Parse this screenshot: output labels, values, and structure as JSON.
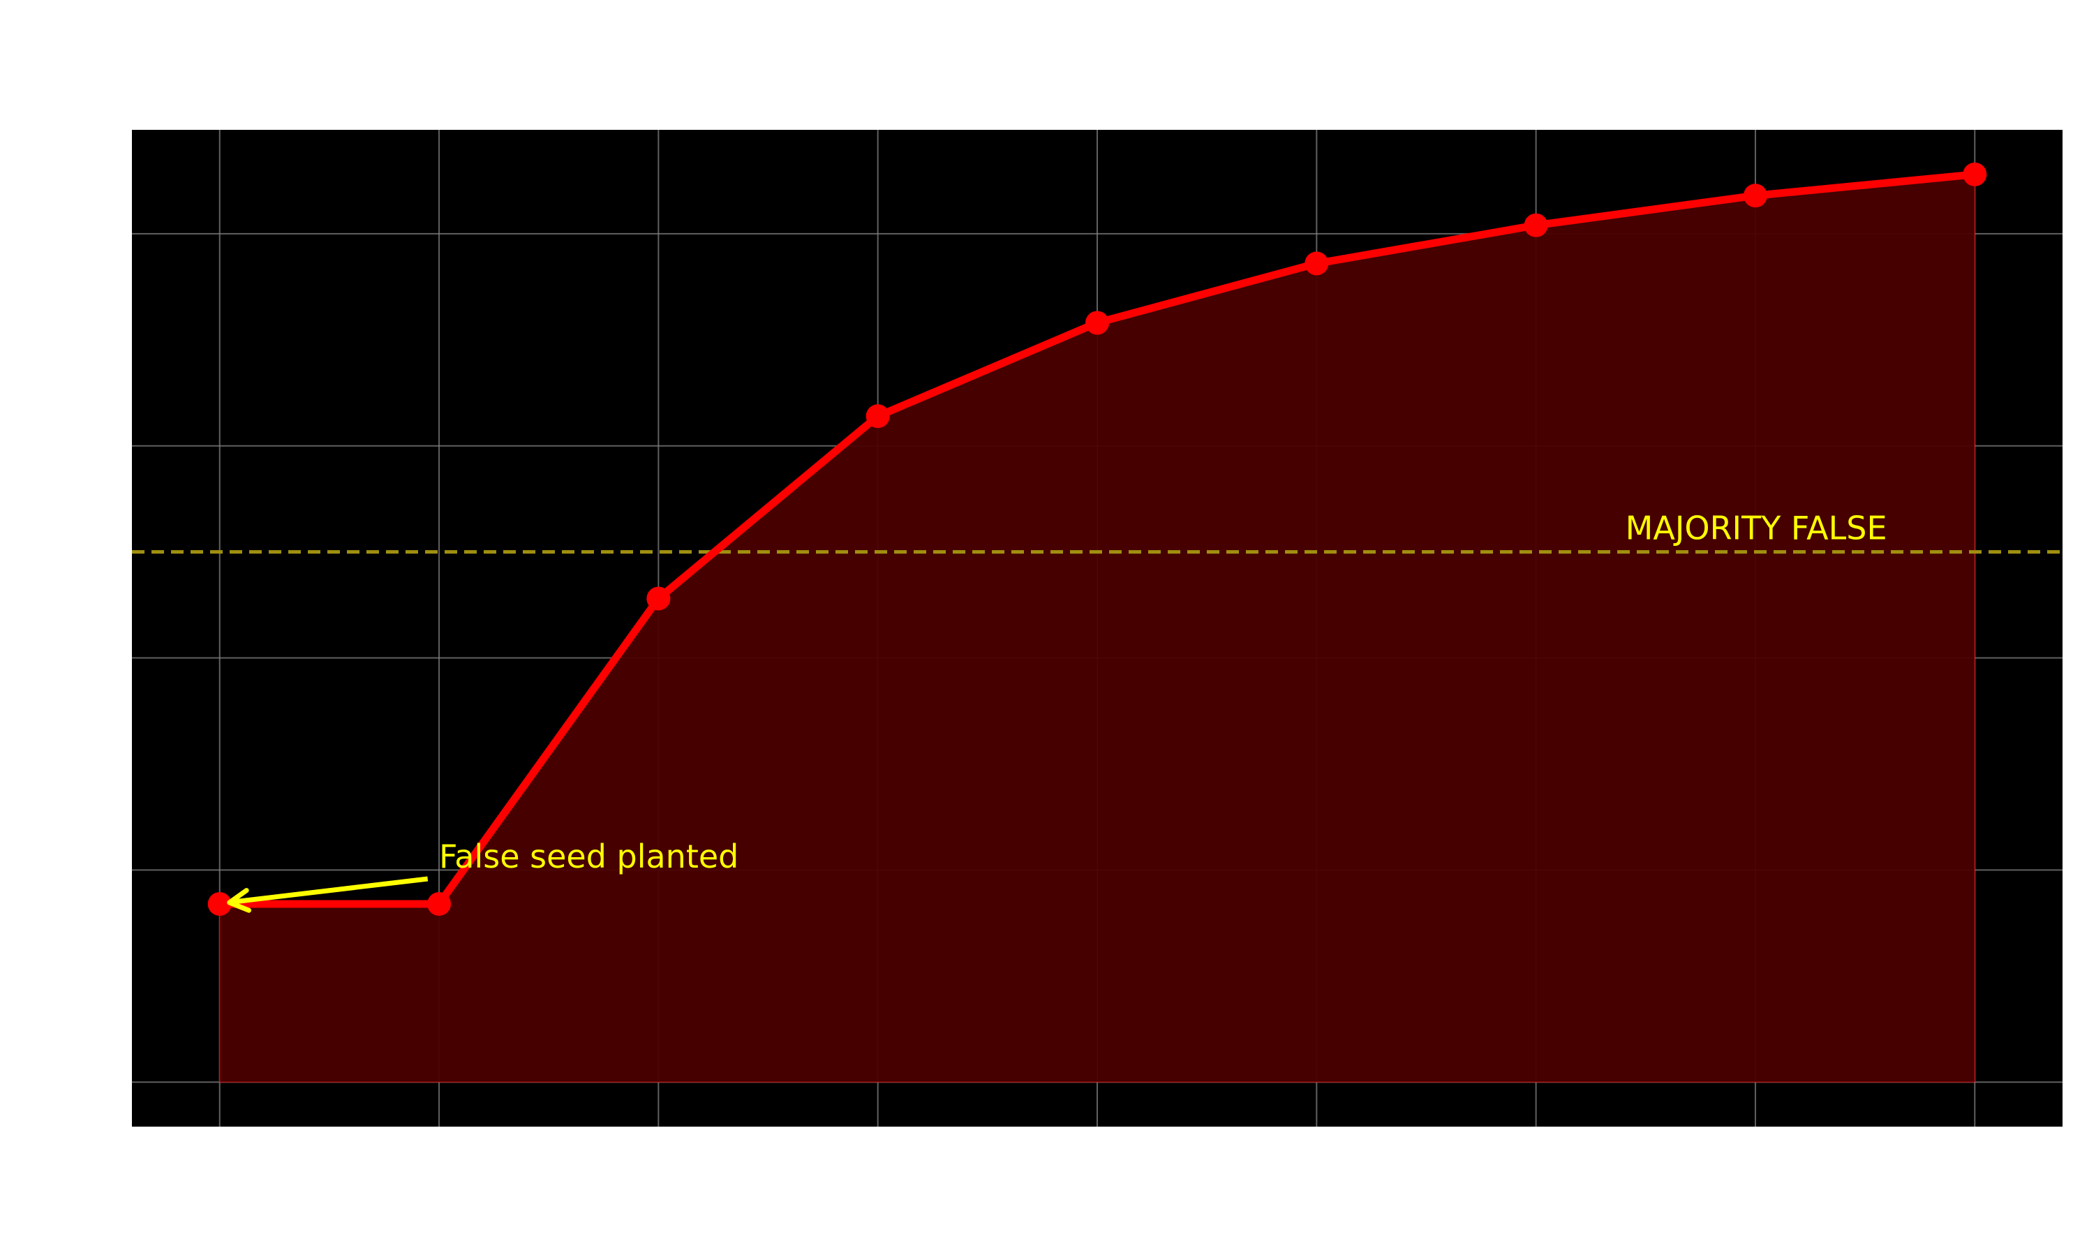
{
  "chart_data": {
    "type": "area",
    "title": "",
    "xlabel": "",
    "ylabel": "",
    "x": [
      0,
      1,
      2,
      3,
      4,
      5,
      6,
      7,
      8
    ],
    "series": [
      {
        "values": [
          8.4,
          8.4,
          22.8,
          31.4,
          35.8,
          38.6,
          40.4,
          41.8,
          42.8
        ]
      }
    ],
    "xlim": [
      -0.4,
      8.4
    ],
    "ylim": [
      -2.1,
      44.9
    ],
    "yticks": [
      0,
      10,
      20,
      30,
      40
    ],
    "reference_line": {
      "y": 25,
      "label": "MAJORITY FALSE"
    },
    "annotations": [
      {
        "text": "False seed planted",
        "x": 0,
        "y": 8.4
      }
    ],
    "grid": true,
    "colors": {
      "background": "#000000",
      "line": "#ff0000",
      "area_fill": "#4a0000",
      "grid": "#808080",
      "reference_line": "#a09010",
      "annotation": "#ffff00"
    }
  }
}
